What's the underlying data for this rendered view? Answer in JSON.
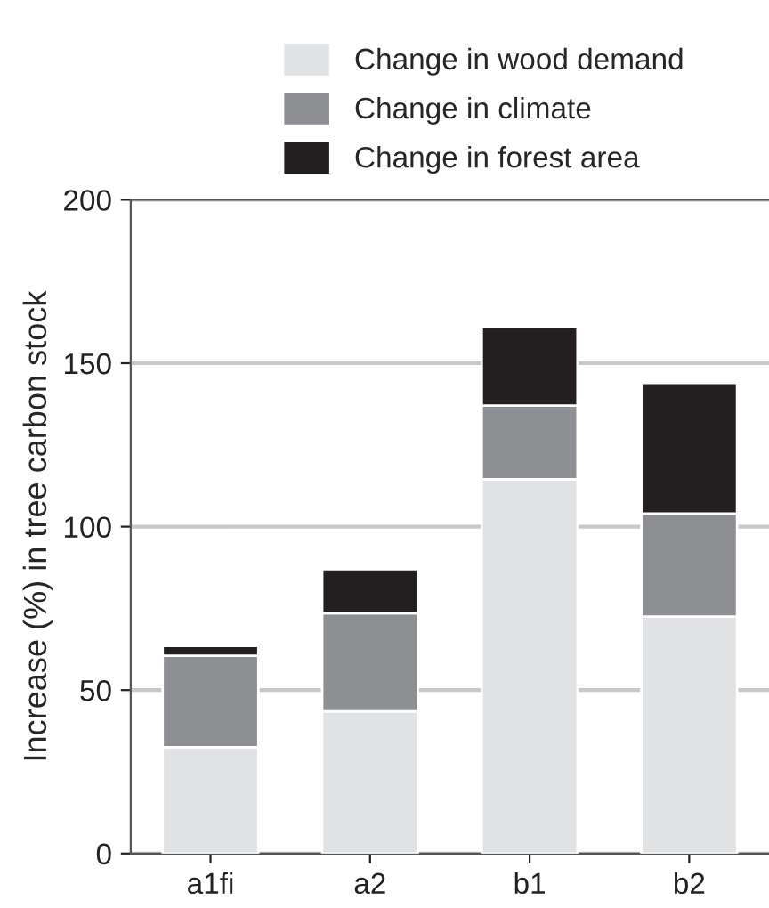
{
  "chart_data": {
    "type": "bar",
    "stacked": true,
    "ylabel": "Increase (%) in tree carbon stock",
    "categories": [
      "a1fi",
      "a2",
      "b1",
      "b2"
    ],
    "series": [
      {
        "name": "Change in wood demand",
        "color": "#e1e2e4",
        "values": [
          32.5,
          43.5,
          114.5,
          72.5
        ]
      },
      {
        "name": "Change in climate",
        "color": "#8e8f93",
        "values": [
          28,
          30,
          22.5,
          31.5
        ]
      },
      {
        "name": "Change in forest area",
        "color": "#231f20",
        "values": [
          3,
          13.5,
          24,
          40
        ]
      }
    ],
    "ylim": [
      0,
      200
    ],
    "yticks": [
      0,
      50,
      100,
      150,
      200
    ],
    "grid": "y",
    "legend": "top"
  }
}
